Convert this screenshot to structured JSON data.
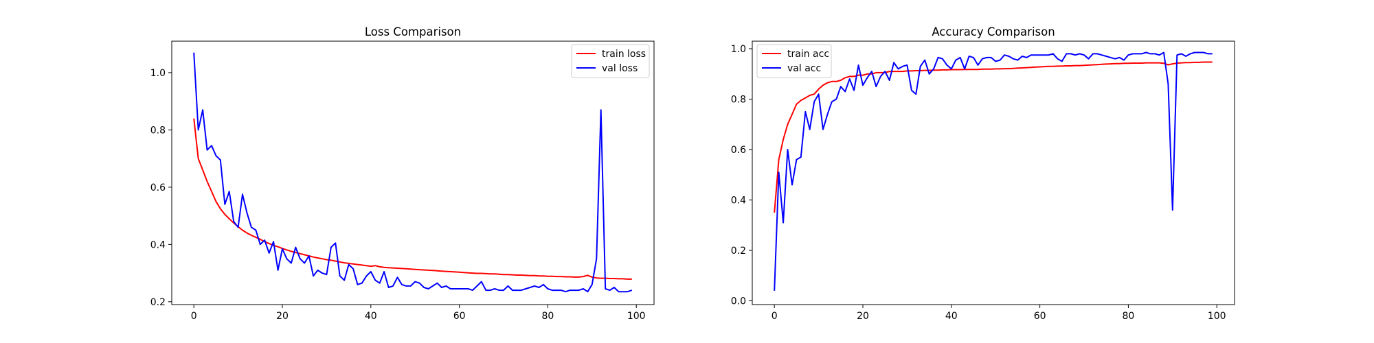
{
  "chart_data": [
    {
      "type": "line",
      "title": "Loss Comparison",
      "xlabel": "",
      "ylabel": "",
      "xlim": [
        -5,
        104
      ],
      "ylim": [
        0.19,
        1.11
      ],
      "xticks": [
        0,
        20,
        40,
        60,
        80,
        100
      ],
      "yticks": [
        0.2,
        0.4,
        0.6,
        0.8,
        1.0
      ],
      "xtick_labels": [
        "0",
        "20",
        "40",
        "60",
        "80",
        "100"
      ],
      "ytick_labels": [
        "0.2",
        "0.4",
        "0.6",
        "0.8",
        "1.0"
      ],
      "grid": false,
      "legend_position": "upper right",
      "x": [
        0,
        1,
        2,
        3,
        4,
        5,
        6,
        7,
        8,
        9,
        10,
        11,
        12,
        13,
        14,
        15,
        16,
        17,
        18,
        19,
        20,
        21,
        22,
        23,
        24,
        25,
        26,
        27,
        28,
        29,
        30,
        31,
        32,
        33,
        34,
        35,
        36,
        37,
        38,
        39,
        40,
        41,
        42,
        43,
        44,
        45,
        46,
        47,
        48,
        49,
        50,
        51,
        52,
        53,
        54,
        55,
        56,
        57,
        58,
        59,
        60,
        61,
        62,
        63,
        64,
        65,
        66,
        67,
        68,
        69,
        70,
        71,
        72,
        73,
        74,
        75,
        76,
        77,
        78,
        79,
        80,
        81,
        82,
        83,
        84,
        85,
        86,
        87,
        88,
        89,
        90,
        91,
        92,
        93,
        94,
        95,
        96,
        97,
        98,
        99
      ],
      "series": [
        {
          "name": "train loss",
          "color": "#ff0000",
          "values": [
            0.84,
            0.7,
            0.66,
            0.62,
            0.585,
            0.55,
            0.525,
            0.505,
            0.49,
            0.475,
            0.462,
            0.45,
            0.44,
            0.432,
            0.425,
            0.418,
            0.41,
            0.403,
            0.397,
            0.392,
            0.386,
            0.381,
            0.376,
            0.372,
            0.368,
            0.364,
            0.36,
            0.356,
            0.353,
            0.35,
            0.347,
            0.345,
            0.342,
            0.339,
            0.336,
            0.334,
            0.332,
            0.33,
            0.328,
            0.326,
            0.324,
            0.326,
            0.322,
            0.32,
            0.319,
            0.318,
            0.317,
            0.316,
            0.315,
            0.314,
            0.313,
            0.312,
            0.311,
            0.31,
            0.309,
            0.308,
            0.307,
            0.306,
            0.305,
            0.304,
            0.303,
            0.302,
            0.301,
            0.3,
            0.299,
            0.299,
            0.298,
            0.297,
            0.297,
            0.296,
            0.295,
            0.295,
            0.294,
            0.293,
            0.293,
            0.292,
            0.291,
            0.291,
            0.29,
            0.29,
            0.289,
            0.289,
            0.288,
            0.288,
            0.287,
            0.287,
            0.286,
            0.286,
            0.288,
            0.292,
            0.286,
            0.283,
            0.282,
            0.282,
            0.281,
            0.281,
            0.28,
            0.28,
            0.279,
            0.279
          ]
        },
        {
          "name": "val loss",
          "color": "#0000ff",
          "values": [
            1.07,
            0.8,
            0.87,
            0.73,
            0.745,
            0.71,
            0.695,
            0.54,
            0.585,
            0.48,
            0.46,
            0.575,
            0.51,
            0.46,
            0.45,
            0.4,
            0.415,
            0.37,
            0.41,
            0.31,
            0.385,
            0.35,
            0.335,
            0.39,
            0.35,
            0.335,
            0.36,
            0.29,
            0.31,
            0.3,
            0.295,
            0.39,
            0.405,
            0.29,
            0.275,
            0.33,
            0.315,
            0.26,
            0.265,
            0.29,
            0.305,
            0.275,
            0.265,
            0.305,
            0.25,
            0.255,
            0.285,
            0.26,
            0.255,
            0.255,
            0.27,
            0.265,
            0.25,
            0.245,
            0.255,
            0.265,
            0.25,
            0.255,
            0.245,
            0.245,
            0.245,
            0.245,
            0.245,
            0.24,
            0.255,
            0.27,
            0.24,
            0.24,
            0.245,
            0.24,
            0.24,
            0.255,
            0.24,
            0.24,
            0.24,
            0.245,
            0.25,
            0.255,
            0.25,
            0.26,
            0.245,
            0.24,
            0.24,
            0.24,
            0.235,
            0.24,
            0.24,
            0.24,
            0.245,
            0.235,
            0.26,
            0.35,
            0.87,
            0.245,
            0.24,
            0.25,
            0.235,
            0.235,
            0.235,
            0.24
          ]
        }
      ]
    },
    {
      "type": "line",
      "title": "Accuracy Comparison",
      "xlabel": "",
      "ylabel": "",
      "xlim": [
        -5,
        104
      ],
      "ylim": [
        -0.015,
        1.03
      ],
      "xticks": [
        0,
        20,
        40,
        60,
        80,
        100
      ],
      "yticks": [
        0.0,
        0.2,
        0.4,
        0.6,
        0.8,
        1.0
      ],
      "xtick_labels": [
        "0",
        "20",
        "40",
        "60",
        "80",
        "100"
      ],
      "ytick_labels": [
        "0.0",
        "0.2",
        "0.4",
        "0.6",
        "0.8",
        "1.0"
      ],
      "grid": false,
      "legend_position": "upper left",
      "x": [
        0,
        1,
        2,
        3,
        4,
        5,
        6,
        7,
        8,
        9,
        10,
        11,
        12,
        13,
        14,
        15,
        16,
        17,
        18,
        19,
        20,
        21,
        22,
        23,
        24,
        25,
        26,
        27,
        28,
        29,
        30,
        31,
        32,
        33,
        34,
        35,
        36,
        37,
        38,
        39,
        40,
        41,
        42,
        43,
        44,
        45,
        46,
        47,
        48,
        49,
        50,
        51,
        52,
        53,
        54,
        55,
        56,
        57,
        58,
        59,
        60,
        61,
        62,
        63,
        64,
        65,
        66,
        67,
        68,
        69,
        70,
        71,
        72,
        73,
        74,
        75,
        76,
        77,
        78,
        79,
        80,
        81,
        82,
        83,
        84,
        85,
        86,
        87,
        88,
        89,
        90,
        91,
        92,
        93,
        94,
        95,
        96,
        97,
        98,
        99
      ],
      "series": [
        {
          "name": "train acc",
          "color": "#ff0000",
          "values": [
            0.35,
            0.56,
            0.64,
            0.7,
            0.74,
            0.78,
            0.795,
            0.805,
            0.815,
            0.82,
            0.84,
            0.855,
            0.865,
            0.87,
            0.87,
            0.875,
            0.885,
            0.89,
            0.89,
            0.895,
            0.895,
            0.9,
            0.9,
            0.905,
            0.905,
            0.905,
            0.91,
            0.91,
            0.91,
            0.91,
            0.912,
            0.912,
            0.913,
            0.913,
            0.914,
            0.914,
            0.915,
            0.915,
            0.916,
            0.916,
            0.917,
            0.917,
            0.917,
            0.918,
            0.918,
            0.918,
            0.918,
            0.919,
            0.919,
            0.919,
            0.92,
            0.92,
            0.921,
            0.921,
            0.922,
            0.923,
            0.924,
            0.925,
            0.926,
            0.927,
            0.928,
            0.929,
            0.93,
            0.93,
            0.931,
            0.931,
            0.932,
            0.932,
            0.933,
            0.933,
            0.934,
            0.935,
            0.936,
            0.937,
            0.938,
            0.939,
            0.94,
            0.941,
            0.941,
            0.942,
            0.942,
            0.943,
            0.943,
            0.943,
            0.944,
            0.944,
            0.944,
            0.944,
            0.942,
            0.936,
            0.94,
            0.943,
            0.944,
            0.945,
            0.945,
            0.946,
            0.946,
            0.947,
            0.947,
            0.947
          ]
        },
        {
          "name": "val acc",
          "color": "#0000ff",
          "values": [
            0.04,
            0.51,
            0.31,
            0.6,
            0.46,
            0.56,
            0.57,
            0.75,
            0.68,
            0.79,
            0.82,
            0.68,
            0.74,
            0.79,
            0.8,
            0.85,
            0.83,
            0.88,
            0.835,
            0.935,
            0.855,
            0.885,
            0.91,
            0.85,
            0.89,
            0.91,
            0.875,
            0.945,
            0.92,
            0.93,
            0.935,
            0.835,
            0.82,
            0.93,
            0.955,
            0.9,
            0.92,
            0.965,
            0.96,
            0.935,
            0.92,
            0.955,
            0.965,
            0.92,
            0.97,
            0.965,
            0.935,
            0.96,
            0.965,
            0.965,
            0.95,
            0.955,
            0.975,
            0.97,
            0.96,
            0.955,
            0.97,
            0.965,
            0.975,
            0.975,
            0.975,
            0.975,
            0.975,
            0.98,
            0.96,
            0.95,
            0.98,
            0.98,
            0.975,
            0.98,
            0.975,
            0.96,
            0.98,
            0.98,
            0.975,
            0.97,
            0.965,
            0.96,
            0.965,
            0.955,
            0.975,
            0.98,
            0.98,
            0.98,
            0.985,
            0.98,
            0.98,
            0.975,
            0.985,
            0.86,
            0.36,
            0.975,
            0.98,
            0.97,
            0.98,
            0.985,
            0.985,
            0.985,
            0.98,
            0.98
          ]
        }
      ]
    }
  ]
}
